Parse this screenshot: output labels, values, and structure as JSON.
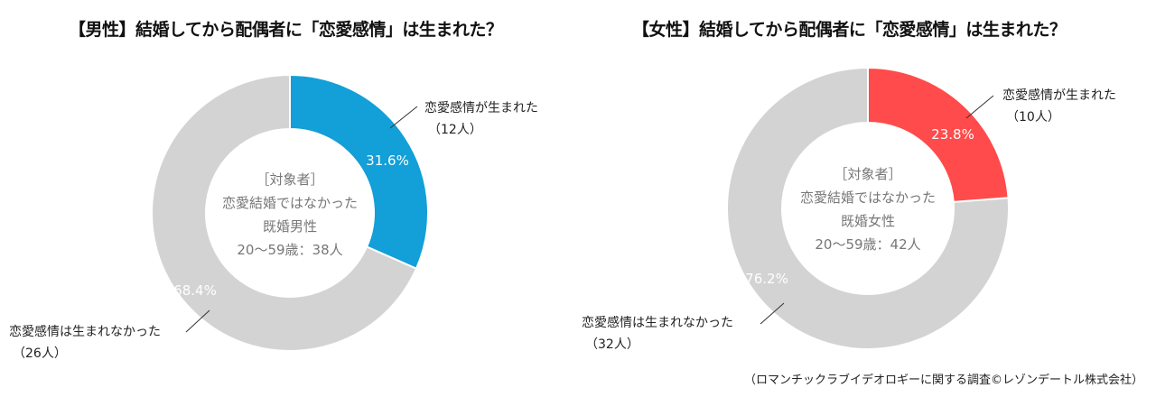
{
  "charts": {
    "male": {
      "title": "【男性】結婚してから配偶者に「恋愛感情」は生まれた？",
      "center": {
        "line1": "［対象者］",
        "line2": "恋愛結婚ではなかった",
        "line3": "既婚男性",
        "line4": "20～59歳：38人"
      },
      "yes": {
        "label": "恋愛感情が生まれた",
        "count": "（12人）",
        "pct": "31.6%"
      },
      "no": {
        "label": "恋愛感情は生まれなかった",
        "count": "（26人）",
        "pct": "68.4%"
      }
    },
    "female": {
      "title": "【女性】結婚してから配偶者に「恋愛感情」は生まれた？",
      "center": {
        "line1": "［対象者］",
        "line2": "恋愛結婚ではなかった",
        "line3": "既婚女性",
        "line4": "20～59歳：42人"
      },
      "yes": {
        "label": "恋愛感情が生まれた",
        "count": "（10人）",
        "pct": "23.8%"
      },
      "no": {
        "label": "恋愛感情は生まれなかった",
        "count": "（32人）",
        "pct": "76.2%"
      }
    }
  },
  "footer": "（ロマンチックラブイデオロギーに関する調査©レゾンデートル株式会社）",
  "colors": {
    "male_accent": "#139FD7",
    "female_accent": "#FF4B4B",
    "gray": "#D3D3D3"
  },
  "chart_data": [
    {
      "type": "pie",
      "title": "【男性】結婚してから配偶者に「恋愛感情」は生まれた？",
      "categories": [
        "恋愛感情が生まれた",
        "恋愛感情は生まれなかった"
      ],
      "values": [
        31.6,
        68.4
      ],
      "counts": [
        12,
        26
      ],
      "total": 38,
      "colors": [
        "#139FD7",
        "#D3D3D3"
      ],
      "donut": true,
      "center_text": [
        "［対象者］",
        "恋愛結婚ではなかった",
        "既婚男性",
        "20～59歳：38人"
      ]
    },
    {
      "type": "pie",
      "title": "【女性】結婚してから配偶者に「恋愛感情」は生まれた？",
      "categories": [
        "恋愛感情が生まれた",
        "恋愛感情は生まれなかった"
      ],
      "values": [
        23.8,
        76.2
      ],
      "counts": [
        10,
        32
      ],
      "total": 42,
      "colors": [
        "#FF4B4B",
        "#D3D3D3"
      ],
      "donut": true,
      "center_text": [
        "［対象者］",
        "恋愛結婚ではなかった",
        "既婚女性",
        "20～59歳：42人"
      ]
    }
  ]
}
